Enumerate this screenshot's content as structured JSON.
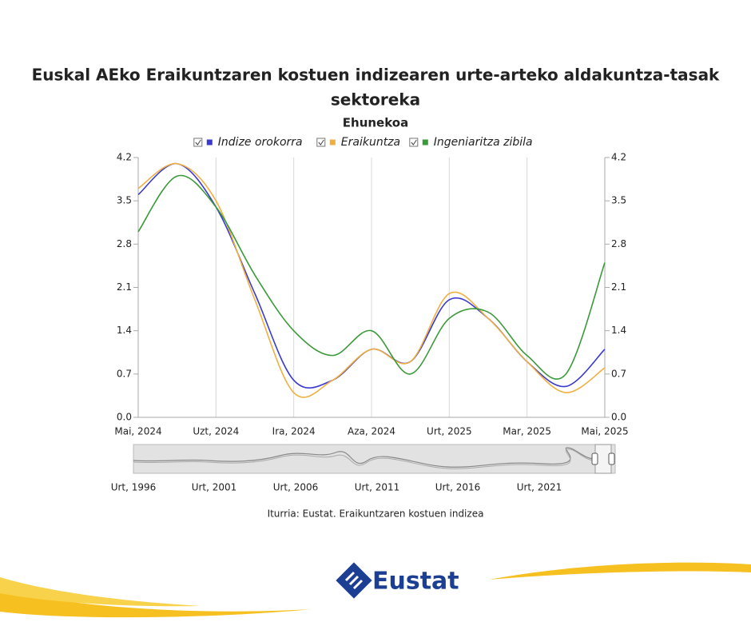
{
  "chart_data": {
    "type": "line",
    "title": "Euskal AEko Eraikuntzaren kostuen indizearen urte-arteko aldakuntza-tasak",
    "title_line2": "sektoreka",
    "subtitle": "Ehunekoa",
    "categories": [
      "Mai, 2024",
      null,
      "Uzt, 2024",
      null,
      "Ira, 2024",
      null,
      "Aza, 2024",
      null,
      "Urt, 2025",
      null,
      "Mar, 2025",
      null,
      "Mai, 2025"
    ],
    "series": [
      {
        "name": "Indize orokorra",
        "color": "#3a3ad0",
        "values": [
          3.6,
          4.1,
          3.4,
          2.0,
          0.6,
          0.6,
          1.1,
          0.9,
          1.9,
          1.6,
          0.9,
          0.5,
          1.1
        ]
      },
      {
        "name": "Eraikuntza",
        "color": "#f0b040",
        "values": [
          3.7,
          4.1,
          3.5,
          1.9,
          0.4,
          0.6,
          1.1,
          0.9,
          2.0,
          1.6,
          0.9,
          0.4,
          0.8
        ]
      },
      {
        "name": "Ingeniaritza zibila",
        "color": "#3a9a3a",
        "values": [
          3.0,
          3.9,
          3.4,
          2.3,
          1.4,
          1.0,
          1.4,
          0.7,
          1.6,
          1.7,
          1.0,
          0.7,
          2.5
        ]
      }
    ],
    "ylim": [
      0,
      4.2
    ],
    "yticks": [
      {
        "value": 0,
        "label": "0.0"
      },
      0.7,
      1.4,
      2.1,
      2.8,
      3.5,
      4.2
    ],
    "y2lim": [
      0,
      4.2
    ],
    "y2ticks": [
      {
        "value": 0,
        "label": "0.0"
      },
      0.7,
      1.4,
      2.1,
      2.8,
      3.5,
      4.2
    ],
    "grid": "x",
    "navigator_labels": [
      "Urt, 1996",
      "Urt, 2001",
      "Urt, 2006",
      "Urt, 2011",
      "Urt, 2016",
      "Urt, 2021"
    ],
    "source": "Iturria: Eustat. Eraikuntzaren kostuen indizea",
    "logo": "Eustat"
  }
}
